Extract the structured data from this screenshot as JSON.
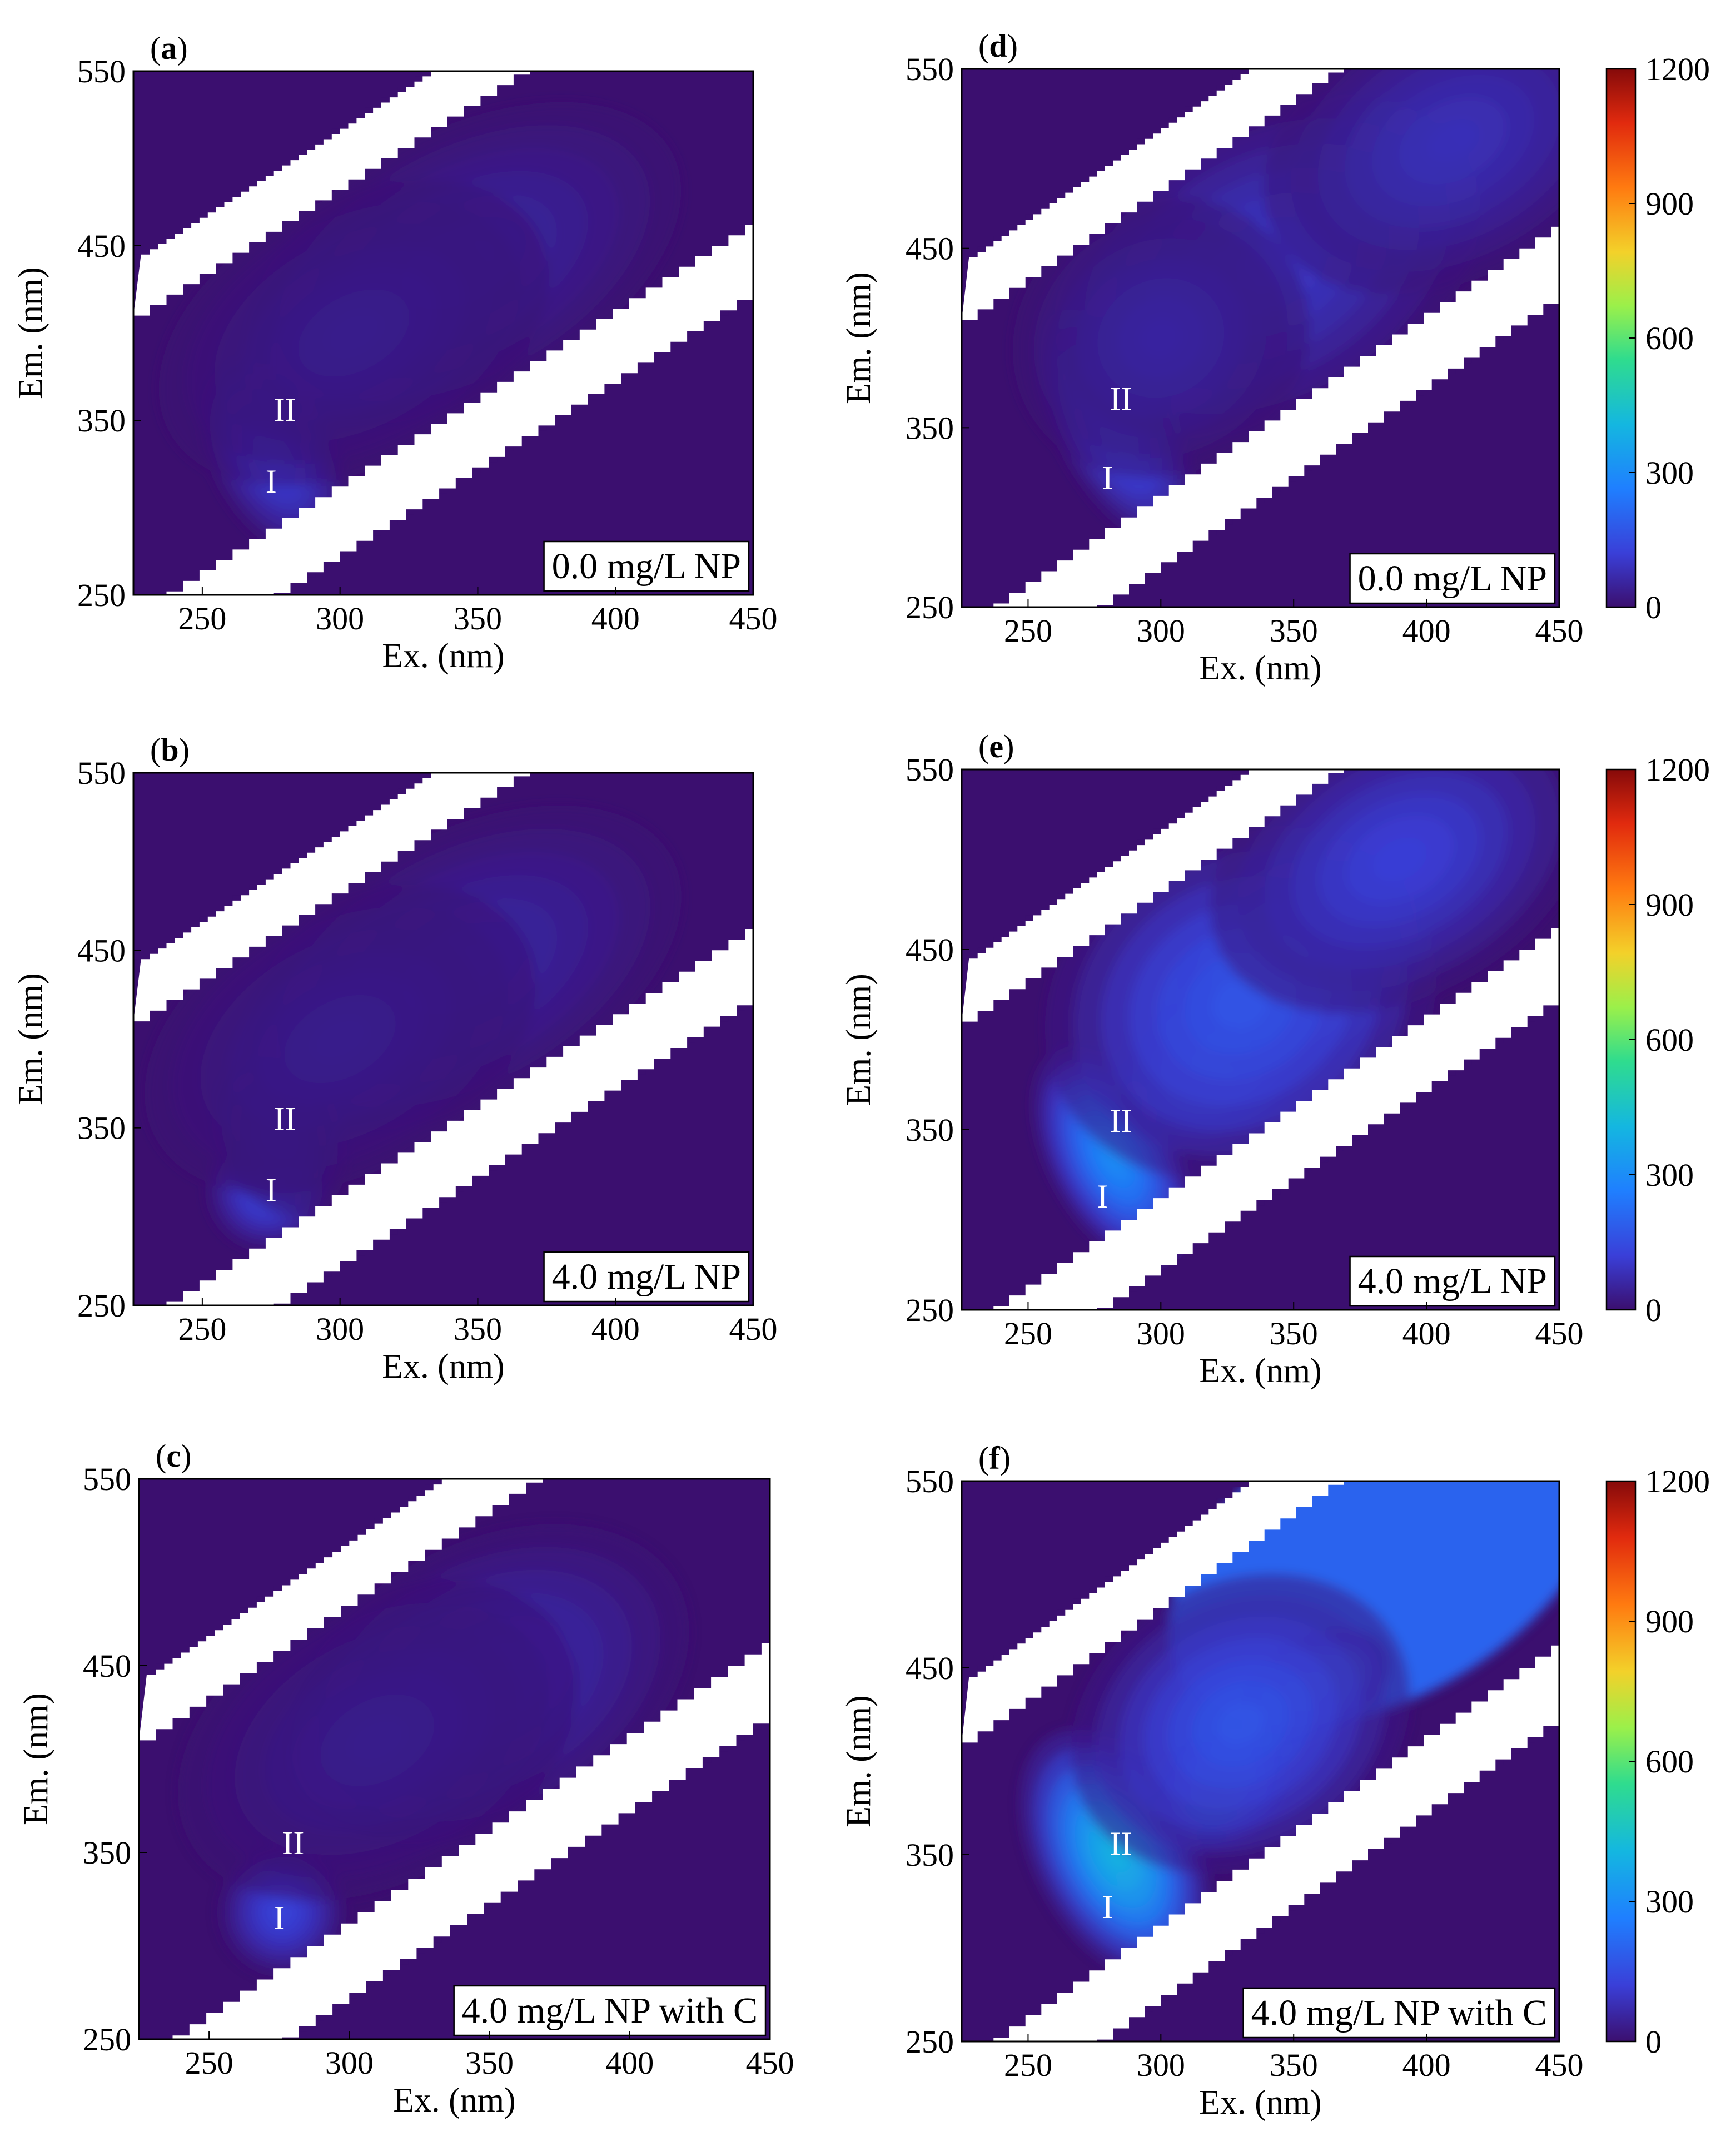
{
  "chart_data": [
    {
      "panel": "a",
      "type": "heatmap",
      "xlabel": "Ex. (nm)",
      "ylabel": "Em. (nm)",
      "xlim": [
        225,
        450
      ],
      "ylim": [
        250,
        550
      ],
      "xticks": [
        "250",
        "300",
        "350",
        "400",
        "450"
      ],
      "yticks": [
        "250",
        "350",
        "450",
        "550"
      ],
      "legend": "0.0 mg/L NP",
      "peaks": [
        {
          "label": "I",
          "ex": 275,
          "em": 315
        },
        {
          "label": "II",
          "ex": 280,
          "em": 356
        }
      ],
      "blobs": [
        {
          "ex": 276,
          "em": 328,
          "sx": 12,
          "sy": 32,
          "v": 130
        },
        {
          "ex": 345,
          "em": 440,
          "sx": 45,
          "sy": 40,
          "v": 60
        },
        {
          "ex": 305,
          "em": 400,
          "sx": 40,
          "sy": 40,
          "v": 35
        }
      ],
      "colorbar": false
    },
    {
      "panel": "b",
      "type": "heatmap",
      "xlabel": "Ex. (nm)",
      "ylabel": "Em. (nm)",
      "xlim": [
        225,
        450
      ],
      "ylim": [
        250,
        550
      ],
      "xticks": [
        "250",
        "300",
        "350",
        "400",
        "450"
      ],
      "yticks": [
        "250",
        "350",
        "450",
        "550"
      ],
      "legend": "4.0 mg/L NP",
      "peaks": [
        {
          "label": "I",
          "ex": 275,
          "em": 315
        },
        {
          "label": "II",
          "ex": 280,
          "em": 355
        }
      ],
      "blobs": [
        {
          "ex": 274,
          "em": 315,
          "sx": 12,
          "sy": 18,
          "v": 150
        },
        {
          "ex": 278,
          "em": 345,
          "sx": 12,
          "sy": 25,
          "v": 60
        },
        {
          "ex": 345,
          "em": 440,
          "sx": 45,
          "sy": 40,
          "v": 65
        },
        {
          "ex": 300,
          "em": 400,
          "sx": 40,
          "sy": 40,
          "v": 35
        }
      ],
      "colorbar": false
    },
    {
      "panel": "c",
      "type": "heatmap",
      "xlabel": "Ex. (nm)",
      "ylabel": "Em. (nm)",
      "xlim": [
        225,
        450
      ],
      "ylim": [
        250,
        550
      ],
      "xticks": [
        "250",
        "300",
        "350",
        "400",
        "450"
      ],
      "yticks": [
        "250",
        "350",
        "450",
        "550"
      ],
      "legend": "4.0 mg/L NP with C",
      "peaks": [
        {
          "label": "I",
          "ex": 275,
          "em": 315
        },
        {
          "label": "II",
          "ex": 280,
          "em": 355
        }
      ],
      "blobs": [
        {
          "ex": 276,
          "em": 318,
          "sx": 12,
          "sy": 18,
          "v": 140
        },
        {
          "ex": 350,
          "em": 440,
          "sx": 40,
          "sy": 40,
          "v": 80
        },
        {
          "ex": 310,
          "em": 410,
          "sx": 40,
          "sy": 40,
          "v": 35
        }
      ],
      "colorbar": false
    },
    {
      "panel": "d",
      "type": "heatmap",
      "xlabel": "Ex. (nm)",
      "ylabel": "Em. (nm)",
      "xlim": [
        225,
        450
      ],
      "ylim": [
        250,
        550
      ],
      "xticks": [
        "250",
        "300",
        "350",
        "400",
        "450"
      ],
      "yticks": [
        "250",
        "350",
        "450",
        "550"
      ],
      "legend": "0.0 mg/L NP",
      "peaks": [
        {
          "label": "I",
          "ex": 280,
          "em": 322
        },
        {
          "label": "II",
          "ex": 285,
          "em": 366
        }
      ],
      "blobs": [
        {
          "ex": 283,
          "em": 350,
          "sx": 12,
          "sy": 38,
          "v": 175
        },
        {
          "ex": 340,
          "em": 440,
          "sx": 45,
          "sy": 45,
          "v": 110
        },
        {
          "ex": 410,
          "em": 510,
          "sx": 40,
          "sy": 40,
          "v": 90
        },
        {
          "ex": 300,
          "em": 400,
          "sx": 30,
          "sy": 40,
          "v": 60
        }
      ],
      "colorbar": true,
      "colorbar_ticks": [
        "0",
        "300",
        "600",
        "900",
        "1200"
      ],
      "clim": [
        0,
        1200
      ]
    },
    {
      "panel": "e",
      "type": "heatmap",
      "xlabel": "Ex. (nm)",
      "ylabel": "Em. (nm)",
      "xlim": [
        225,
        450
      ],
      "ylim": [
        250,
        550
      ],
      "xticks": [
        "250",
        "300",
        "350",
        "400",
        "450"
      ],
      "yticks": [
        "250",
        "350",
        "450",
        "550"
      ],
      "legend": "4.0 mg/L NP",
      "peaks": [
        {
          "label": "I",
          "ex": 278,
          "em": 313
        },
        {
          "label": "II",
          "ex": 285,
          "em": 355
        }
      ],
      "blobs": [
        {
          "ex": 282,
          "em": 335,
          "sx": 13,
          "sy": 35,
          "v": 320
        },
        {
          "ex": 320,
          "em": 385,
          "sx": 20,
          "sy": 22,
          "v": 360
        },
        {
          "ex": 352,
          "em": 440,
          "sx": 25,
          "sy": 30,
          "v": 410
        },
        {
          "ex": 330,
          "em": 420,
          "sx": 40,
          "sy": 50,
          "v": 180
        },
        {
          "ex": 390,
          "em": 500,
          "sx": 40,
          "sy": 40,
          "v": 130
        }
      ],
      "colorbar": true,
      "colorbar_ticks": [
        "0",
        "300",
        "600",
        "900",
        "1200"
      ],
      "clim": [
        0,
        1200
      ]
    },
    {
      "panel": "f",
      "type": "heatmap",
      "xlabel": "Ex. (nm)",
      "ylabel": "Em. (nm)",
      "xlim": [
        225,
        450
      ],
      "ylim": [
        250,
        550
      ],
      "xticks": [
        "250",
        "300",
        "350",
        "400",
        "450"
      ],
      "yticks": [
        "250",
        "350",
        "450",
        "550"
      ],
      "legend": "4.0 mg/L NP with C",
      "peaks": [
        {
          "label": "I",
          "ex": 280,
          "em": 322
        },
        {
          "label": "II",
          "ex": 285,
          "em": 356
        }
      ],
      "blobs": [
        {
          "ex": 285,
          "em": 345,
          "sx": 9,
          "sy": 22,
          "v": 950
        },
        {
          "ex": 283,
          "em": 350,
          "sx": 16,
          "sy": 38,
          "v": 420
        },
        {
          "ex": 322,
          "em": 385,
          "sx": 14,
          "sy": 16,
          "v": 540
        },
        {
          "ex": 358,
          "em": 440,
          "sx": 16,
          "sy": 14,
          "v": 420
        },
        {
          "ex": 330,
          "em": 420,
          "sx": 35,
          "sy": 40,
          "v": 180
        }
      ],
      "floor": [
        {
          "ex": 385,
          "em": 510,
          "sx": 90,
          "sy": 75,
          "v": 200
        }
      ],
      "colorbar": true,
      "colorbar_ticks": [
        "0",
        "300",
        "600",
        "900",
        "1200"
      ],
      "clim": [
        0,
        1200
      ]
    }
  ]
}
